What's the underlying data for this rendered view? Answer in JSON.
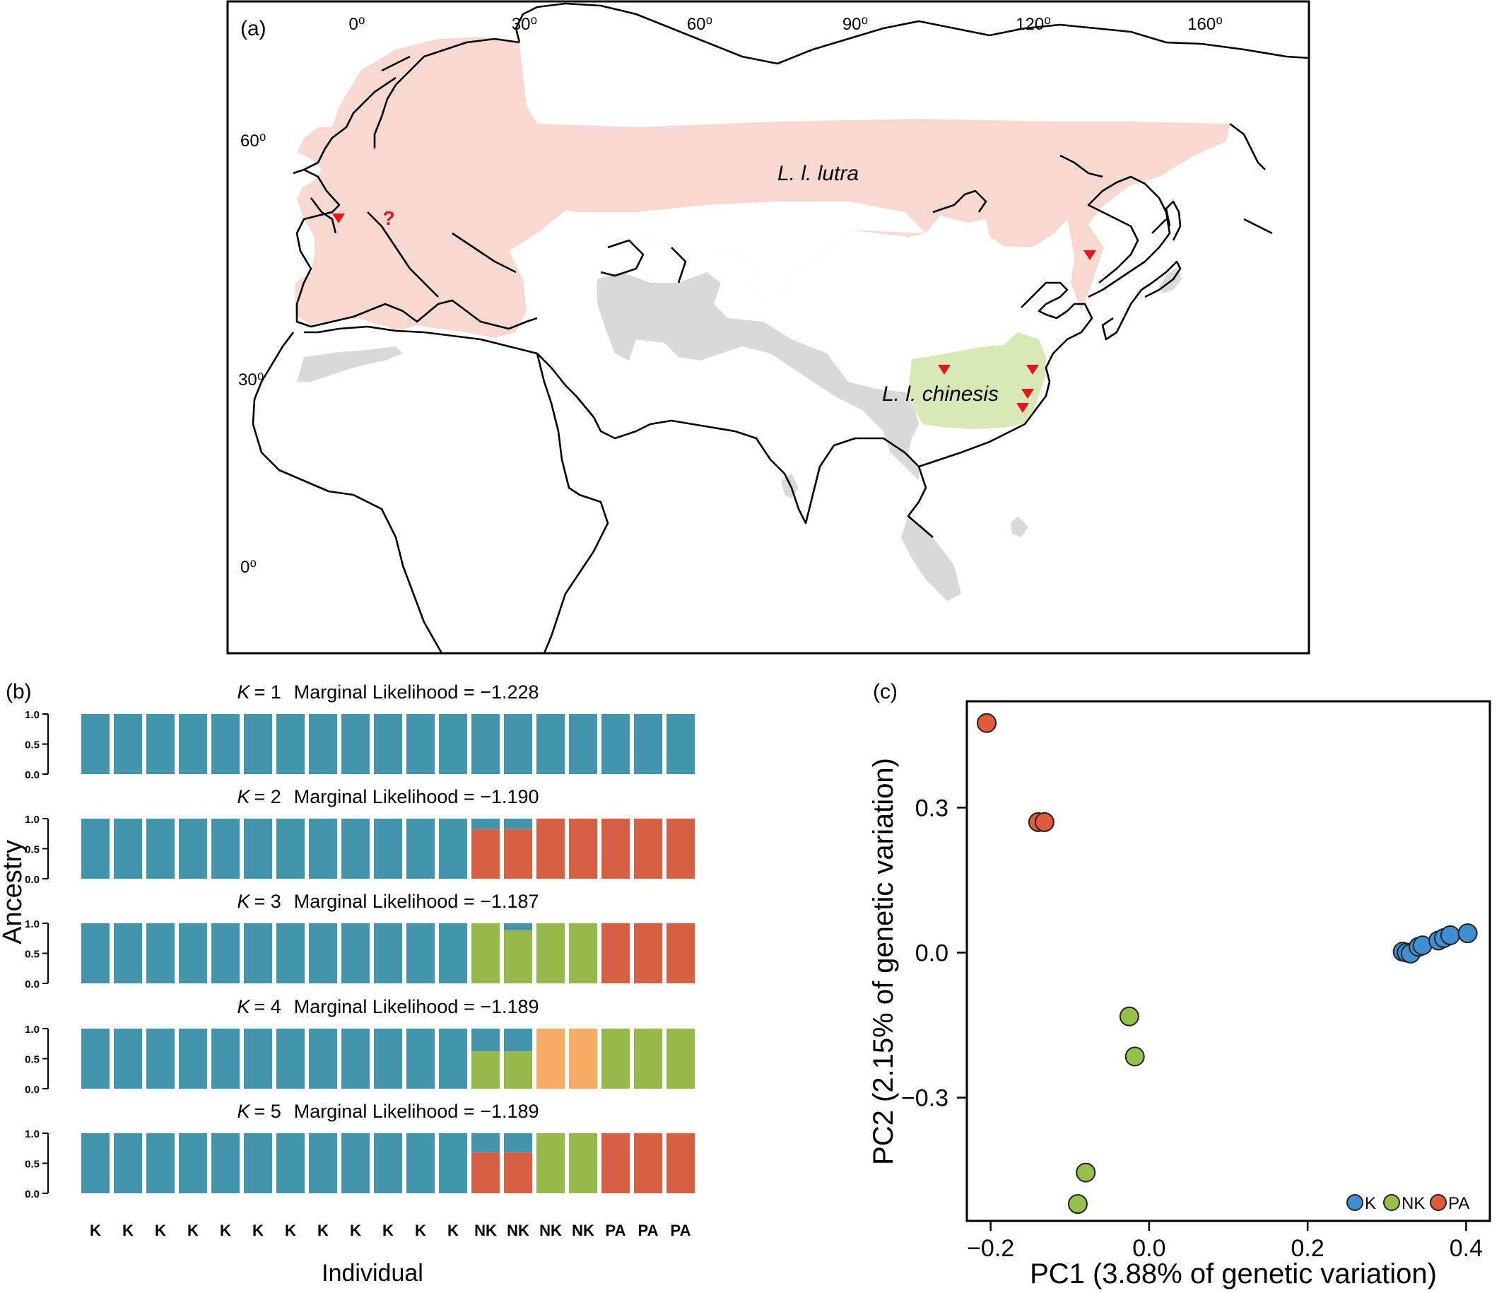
{
  "panel_a": {
    "label": "(a)",
    "lon_ticks": [
      "0⁰",
      "30⁰",
      "60⁰",
      "90⁰",
      "120⁰",
      "160⁰"
    ],
    "lat_ticks": [
      "60⁰",
      "30⁰",
      "0⁰"
    ],
    "region_labels": {
      "lutra": "L. l. lutra",
      "chinesis": "L. l. chinesis"
    },
    "unknown_marker": "?",
    "colors": {
      "lutra": "#f7d9d2",
      "chinesis": "#d8e8b6",
      "other": "#d9d9d9",
      "marker": "#e8141b"
    }
  },
  "panel_b": {
    "label": "(b)",
    "ylabel": "Ancestry",
    "xlabel": "Individual",
    "yticks": [
      "1.0",
      "0.5",
      "0.0"
    ],
    "individuals": [
      "K",
      "K",
      "K",
      "K",
      "K",
      "K",
      "K",
      "K",
      "K",
      "K",
      "K",
      "K",
      "NK",
      "NK",
      "NK",
      "NK",
      "PA",
      "PA",
      "PA"
    ],
    "colors": {
      "teal": "#4495ab",
      "red": "#d75f42",
      "green": "#97b94c",
      "orange": "#f8ad67"
    },
    "rows": [
      {
        "k_label": "K",
        "k_value": "= 1",
        "likelihood_text": "Marginal Likelihood = −1.228",
        "bars": [
          [
            1
          ],
          [
            1
          ],
          [
            1
          ],
          [
            1
          ],
          [
            1
          ],
          [
            1
          ],
          [
            1
          ],
          [
            1
          ],
          [
            1
          ],
          [
            1
          ],
          [
            1
          ],
          [
            1
          ],
          [
            1
          ],
          [
            1
          ],
          [
            1
          ],
          [
            1
          ],
          [
            1
          ],
          [
            1
          ],
          [
            1
          ]
        ],
        "bar_colors": [
          "teal"
        ]
      },
      {
        "k_label": "K",
        "k_value": "= 2",
        "likelihood_text": "Marginal Likelihood = −1.190",
        "bars": [
          [
            1,
            0
          ],
          [
            1,
            0
          ],
          [
            1,
            0
          ],
          [
            1,
            0
          ],
          [
            1,
            0
          ],
          [
            1,
            0
          ],
          [
            1,
            0
          ],
          [
            1,
            0
          ],
          [
            1,
            0
          ],
          [
            1,
            0
          ],
          [
            1,
            0
          ],
          [
            1,
            0
          ],
          [
            0.18,
            0.82
          ],
          [
            0.18,
            0.82
          ],
          [
            0,
            1
          ],
          [
            0,
            1
          ],
          [
            0,
            1
          ],
          [
            0,
            1
          ],
          [
            0,
            1
          ]
        ],
        "bar_colors": [
          "teal",
          "red"
        ]
      },
      {
        "k_label": "K",
        "k_value": "= 3",
        "likelihood_text": "Marginal Likelihood = −1.187",
        "bars": [
          [
            1,
            0,
            0
          ],
          [
            1,
            0,
            0
          ],
          [
            1,
            0,
            0
          ],
          [
            1,
            0,
            0
          ],
          [
            1,
            0,
            0
          ],
          [
            1,
            0,
            0
          ],
          [
            1,
            0,
            0
          ],
          [
            1,
            0,
            0
          ],
          [
            1,
            0,
            0
          ],
          [
            1,
            0,
            0
          ],
          [
            1,
            0,
            0
          ],
          [
            1,
            0,
            0
          ],
          [
            0,
            1,
            0
          ],
          [
            0.12,
            0.88,
            0
          ],
          [
            0,
            1,
            0
          ],
          [
            0,
            1,
            0
          ],
          [
            0,
            0,
            1
          ],
          [
            0,
            0,
            1
          ],
          [
            0,
            0,
            1
          ]
        ],
        "bar_colors": [
          "teal",
          "green",
          "red"
        ]
      },
      {
        "k_label": "K",
        "k_value": "= 4",
        "likelihood_text": "Marginal Likelihood = −1.189",
        "bars": [
          [
            1,
            0,
            0
          ],
          [
            1,
            0,
            0
          ],
          [
            1,
            0,
            0
          ],
          [
            1,
            0,
            0
          ],
          [
            1,
            0,
            0
          ],
          [
            1,
            0,
            0
          ],
          [
            1,
            0,
            0
          ],
          [
            1,
            0,
            0
          ],
          [
            1,
            0,
            0
          ],
          [
            1,
            0,
            0
          ],
          [
            1,
            0,
            0
          ],
          [
            1,
            0,
            0
          ],
          [
            0.38,
            0.62,
            0
          ],
          [
            0.38,
            0.62,
            0
          ],
          [
            0,
            0,
            1
          ],
          [
            0,
            0,
            1
          ],
          [
            0,
            1,
            0
          ],
          [
            0,
            1,
            0
          ],
          [
            0,
            1,
            0
          ]
        ],
        "bar_colors": [
          "teal",
          "green",
          "orange"
        ]
      },
      {
        "k_label": "K",
        "k_value": "= 5",
        "likelihood_text": "Marginal Likelihood = −1.189",
        "bars": [
          [
            1,
            0,
            0
          ],
          [
            1,
            0,
            0
          ],
          [
            1,
            0,
            0
          ],
          [
            1,
            0,
            0
          ],
          [
            1,
            0,
            0
          ],
          [
            1,
            0,
            0
          ],
          [
            1,
            0,
            0
          ],
          [
            1,
            0,
            0
          ],
          [
            1,
            0,
            0
          ],
          [
            1,
            0,
            0
          ],
          [
            1,
            0,
            0
          ],
          [
            1,
            0,
            0
          ],
          [
            0.32,
            0,
            0.68
          ],
          [
            0.32,
            0,
            0.68
          ],
          [
            0,
            1,
            0
          ],
          [
            0,
            1,
            0
          ],
          [
            0,
            0,
            1
          ],
          [
            0,
            0,
            1
          ],
          [
            0,
            0,
            1
          ]
        ],
        "bar_colors": [
          "teal",
          "green",
          "red"
        ]
      }
    ]
  },
  "chart_data": {
    "type": "scatter",
    "label": "(c)",
    "xlabel": "PC1 (3.88% of genetic variation)",
    "ylabel": "PC2 (2.15% of genetic variation)",
    "xlim": [
      -0.23,
      0.43
    ],
    "ylim": [
      -0.555,
      0.52
    ],
    "xticks": [
      -0.2,
      0.0,
      0.2,
      0.4
    ],
    "xtick_labels": [
      "−0.2",
      "0.0",
      "0.2",
      "0.4"
    ],
    "yticks": [
      0.3,
      0.0,
      -0.3
    ],
    "ytick_labels": [
      "0.3",
      "0.0",
      "−0.3"
    ],
    "grid": false,
    "legend_position": "bottom-right",
    "series": [
      {
        "name": "K",
        "color": "#3f8fd2",
        "points": [
          [
            0.32,
            0.002
          ],
          [
            0.325,
            0.0
          ],
          [
            0.33,
            -0.002
          ],
          [
            0.34,
            0.012
          ],
          [
            0.345,
            0.015
          ],
          [
            0.365,
            0.025
          ],
          [
            0.372,
            0.03
          ],
          [
            0.38,
            0.036
          ],
          [
            0.402,
            0.04
          ]
        ]
      },
      {
        "name": "NK",
        "color": "#97c04b",
        "points": [
          [
            -0.025,
            -0.132
          ],
          [
            -0.018,
            -0.215
          ],
          [
            -0.08,
            -0.455
          ],
          [
            -0.09,
            -0.52
          ]
        ]
      },
      {
        "name": "PA",
        "color": "#e05a3c",
        "points": [
          [
            -0.205,
            0.475
          ],
          [
            -0.14,
            0.27
          ],
          [
            -0.132,
            0.27
          ]
        ]
      }
    ]
  }
}
